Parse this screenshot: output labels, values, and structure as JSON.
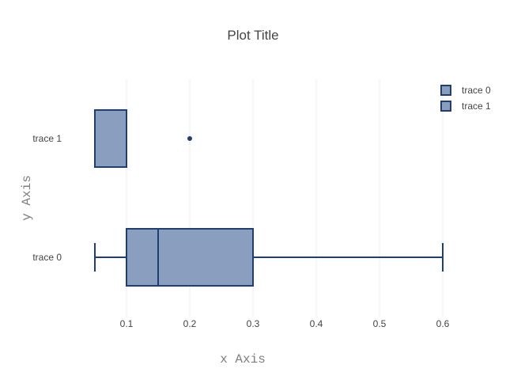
{
  "chart_data": {
    "type": "box",
    "orientation": "horizontal",
    "title": "Plot Title",
    "xlabel": "x Axis",
    "ylabel": "y Axis",
    "xlim": [
      0.0,
      0.6
    ],
    "xticks": [
      0.1,
      0.2,
      0.3,
      0.4,
      0.5,
      0.6
    ],
    "xtick_labels": [
      "0.1",
      "0.2",
      "0.3",
      "0.4",
      "0.5",
      "0.6"
    ],
    "categories": [
      "trace 0",
      "trace 1"
    ],
    "grid": true,
    "legend_position": "top-right",
    "series": [
      {
        "name": "trace 0",
        "whisker_low": 0.05,
        "q1": 0.1,
        "median": 0.15,
        "q3": 0.3,
        "whisker_high": 0.6,
        "outliers": []
      },
      {
        "name": "trace 1",
        "whisker_low": 0.05,
        "q1": 0.05,
        "median": 0.1,
        "q3": 0.1,
        "whisker_high": 0.1,
        "outliers": [
          0.2
        ]
      }
    ],
    "colors": {
      "box_fill": "#8a9ebf",
      "box_stroke": "#1f3f73",
      "outlier": "#1f3f73",
      "grid": "#eeeeee",
      "text": "#444444",
      "axis_title": "#7f7f7f"
    }
  }
}
